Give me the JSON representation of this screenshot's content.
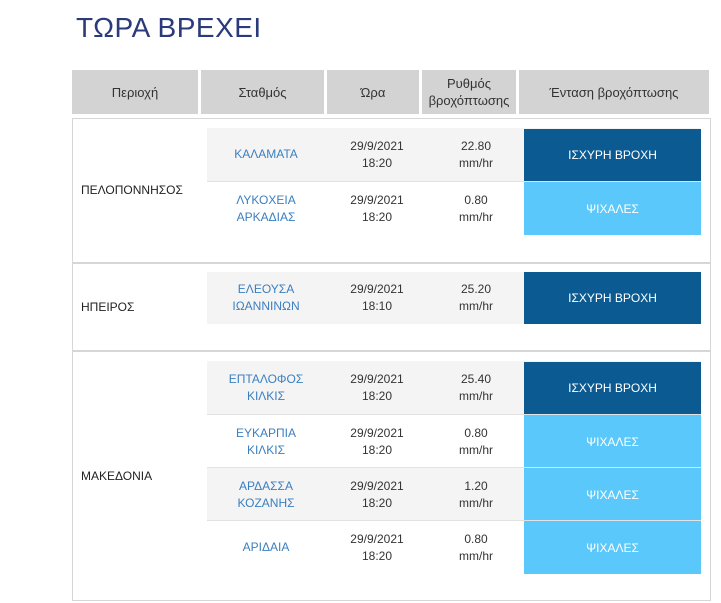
{
  "page": {
    "title": "ΤΩΡΑ ΒΡΕΧΕΙ"
  },
  "table": {
    "headers": {
      "region": "Περιοχή",
      "station": "Σταθμός",
      "time": "Ώρα",
      "rate_line1": "Ρυθμός",
      "rate_line2": "βροχόπτωσης",
      "intensity": "Ένταση βροχόπτωσης"
    },
    "regions": [
      {
        "name": "ΠΕΛΟΠΟΝΝΗΣΟΣ",
        "rows": [
          {
            "station_l1": "ΚΑΛΑΜΑΤΑ",
            "station_l2": "",
            "date": "29/9/2021",
            "time": "18:20",
            "rate": "22.80",
            "unit": "mm/hr",
            "intensity": "ΙΣΧΥΡΗ ΒΡΟΧΗ"
          },
          {
            "station_l1": "ΛΥΚΟΧΕΙΑ",
            "station_l2": "ΑΡΚΑΔΙΑΣ",
            "date": "29/9/2021",
            "time": "18:20",
            "rate": "0.80",
            "unit": "mm/hr",
            "intensity": "ΨΙΧΑΛΕΣ"
          }
        ]
      },
      {
        "name": "ΗΠΕΙΡΟΣ",
        "rows": [
          {
            "station_l1": "ΕΛΕΟΥΣΑ",
            "station_l2": "ΙΩΑΝΝΙΝΩΝ",
            "date": "29/9/2021",
            "time": "18:10",
            "rate": "25.20",
            "unit": "mm/hr",
            "intensity": "ΙΣΧΥΡΗ ΒΡΟΧΗ"
          }
        ]
      },
      {
        "name": "ΜΑΚΕΔΟΝΙΑ",
        "rows": [
          {
            "station_l1": "ΕΠΤΑΛΟΦΟΣ",
            "station_l2": "ΚΙΛΚΙΣ",
            "date": "29/9/2021",
            "time": "18:20",
            "rate": "25.40",
            "unit": "mm/hr",
            "intensity": "ΙΣΧΥΡΗ ΒΡΟΧΗ"
          },
          {
            "station_l1": "ΕΥΚΑΡΠΙΑ",
            "station_l2": "ΚΙΛΚΙΣ",
            "date": "29/9/2021",
            "time": "18:20",
            "rate": "0.80",
            "unit": "mm/hr",
            "intensity": "ΨΙΧΑΛΕΣ"
          },
          {
            "station_l1": "ΑΡΔΑΣΣΑ",
            "station_l2": "ΚΟΖΑΝΗΣ",
            "date": "29/9/2021",
            "time": "18:20",
            "rate": "1.20",
            "unit": "mm/hr",
            "intensity": "ΨΙΧΑΛΕΣ"
          },
          {
            "station_l1": "ΑΡΙΔΑΙΑ",
            "station_l2": "",
            "date": "29/9/2021",
            "time": "18:20",
            "rate": "0.80",
            "unit": "mm/hr",
            "intensity": "ΨΙΧΑΛΕΣ"
          }
        ]
      }
    ]
  },
  "colors": {
    "strong_rain": "#0b5a92",
    "drizzle": "#5ac8fa",
    "title": "#2b3a7a",
    "station_link": "#3a7fc0",
    "header_bg": "#d3d3d3"
  }
}
